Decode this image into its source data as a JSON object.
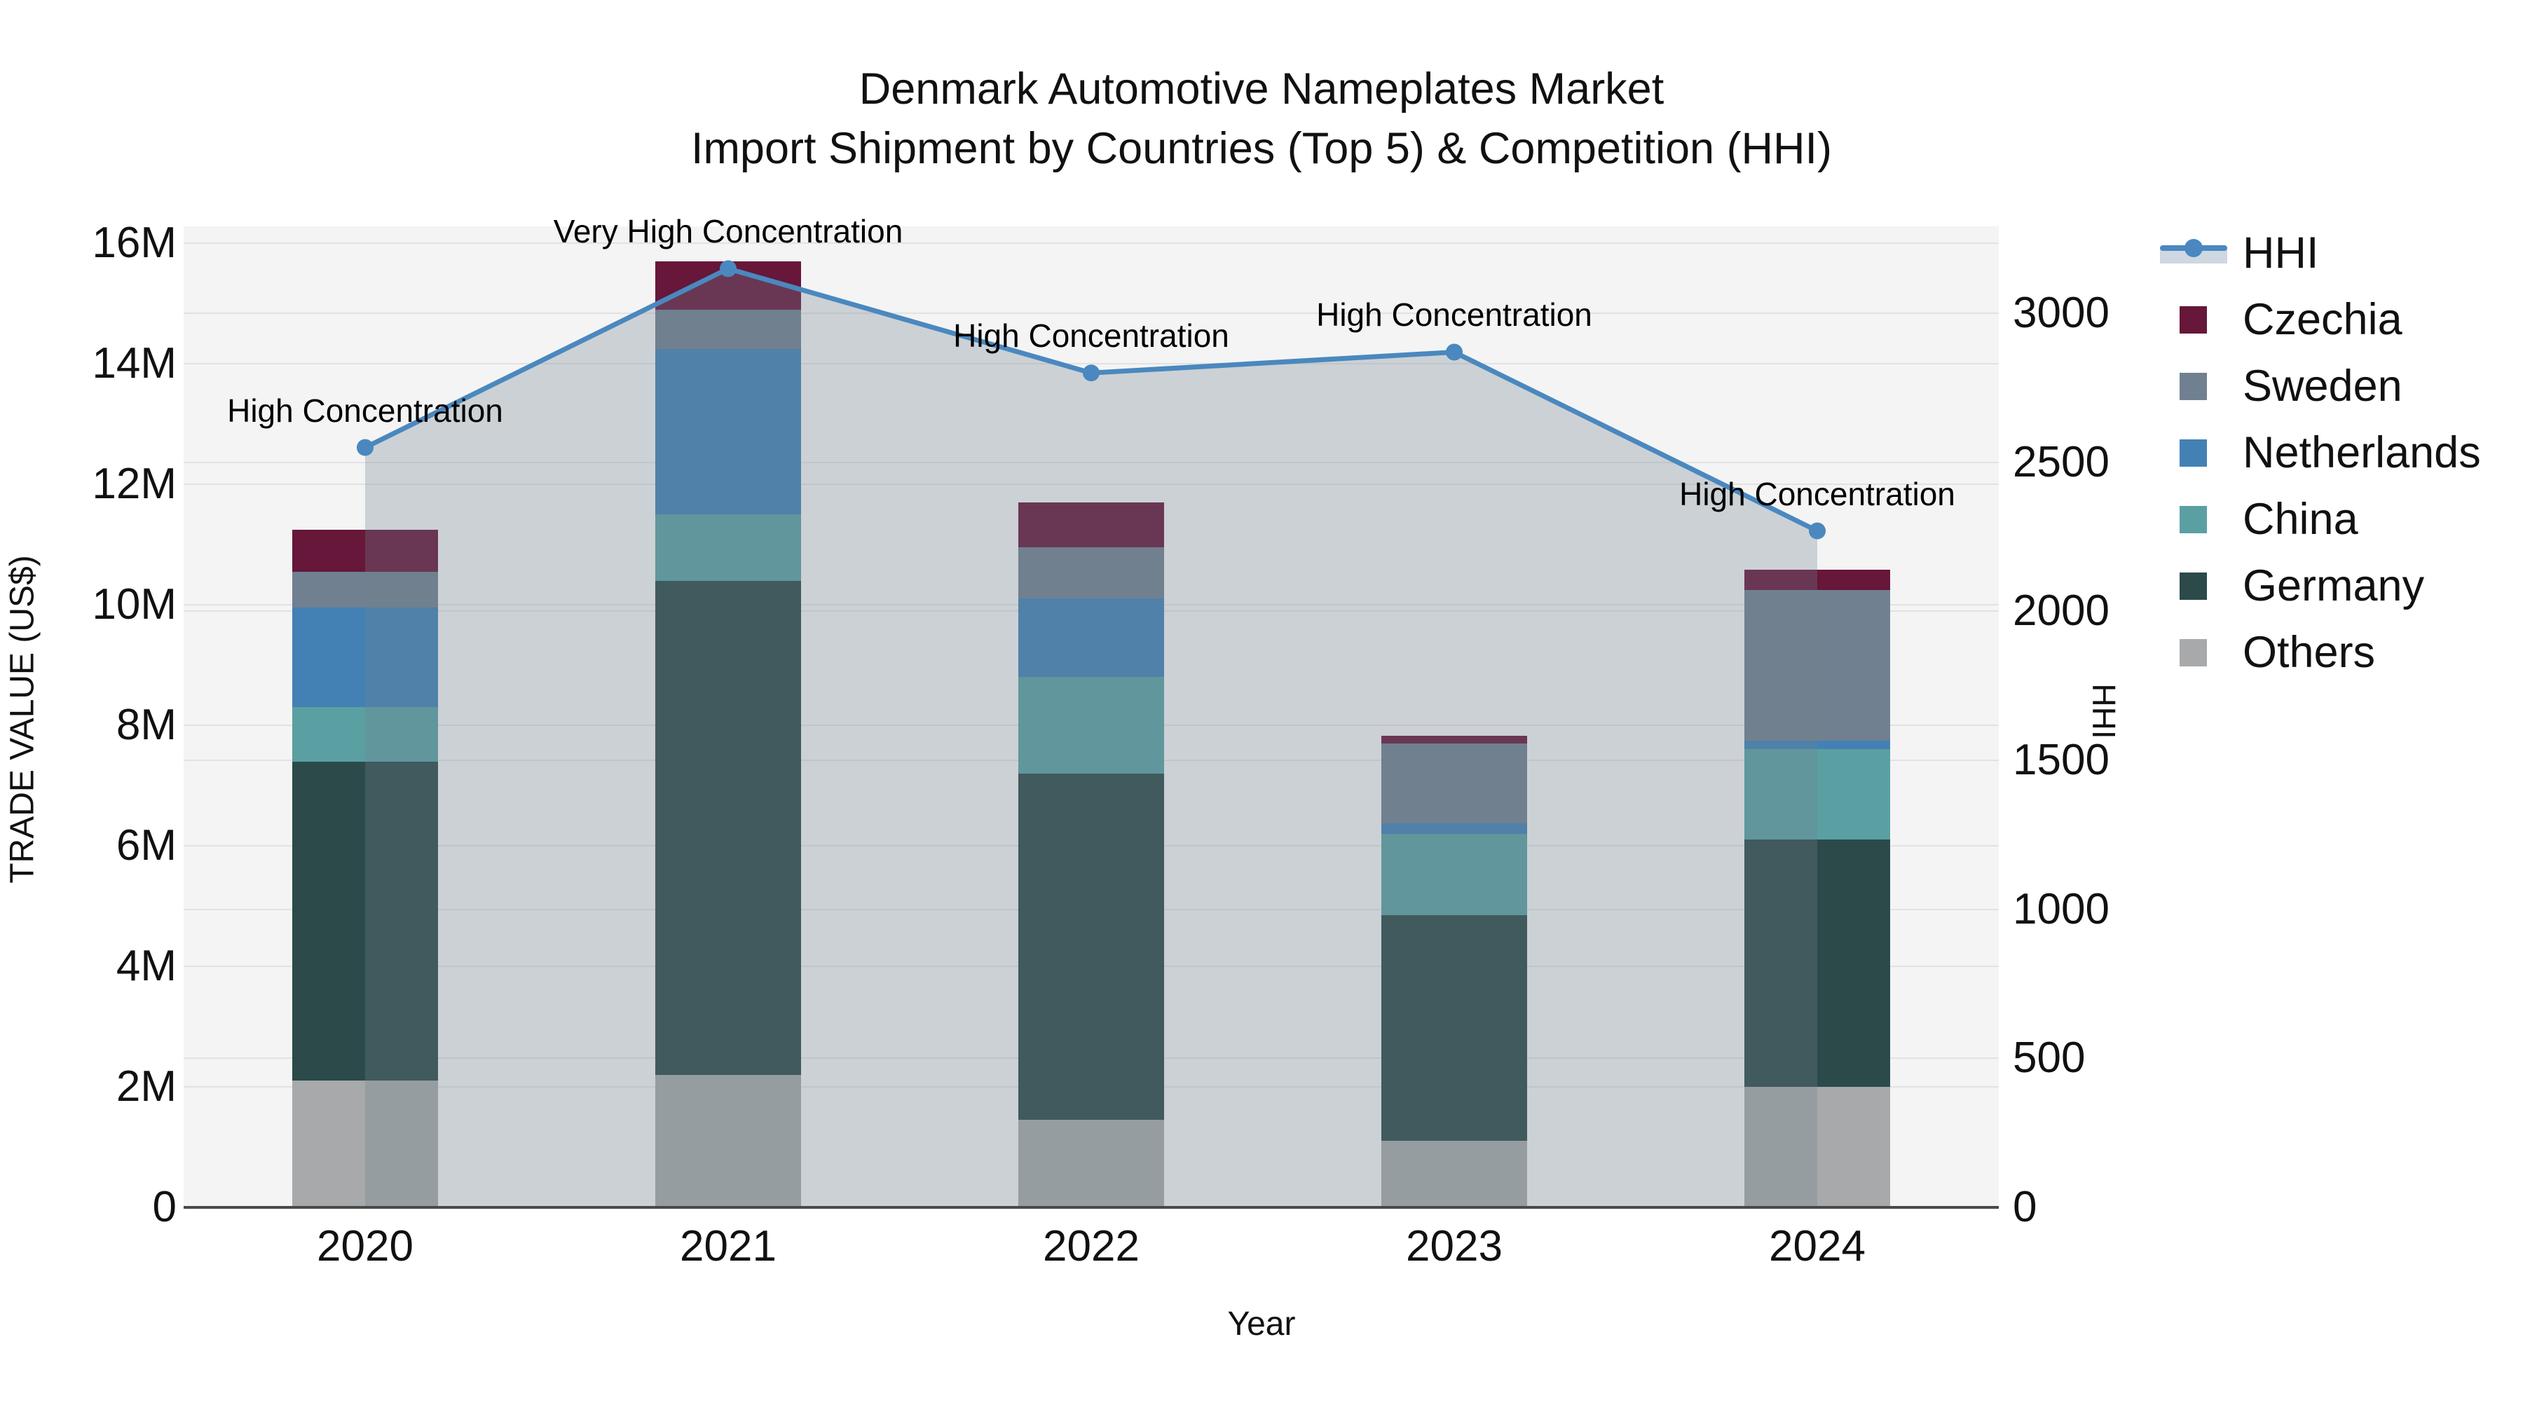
{
  "title": {
    "line1": "Denmark Automotive Nameplates Market",
    "line2": "Import Shipment by Countries (Top 5) & Competition (HHI)"
  },
  "legend": {
    "items": [
      {
        "label": "HHI",
        "type": "line",
        "color": "#4a88bf"
      },
      {
        "label": "Czechia",
        "type": "swatch",
        "color": "#66173a"
      },
      {
        "label": "Sweden",
        "type": "swatch",
        "color": "#708090"
      },
      {
        "label": "Netherlands",
        "type": "swatch",
        "color": "#4381b5"
      },
      {
        "label": "China",
        "type": "swatch",
        "color": "#5aa0a2"
      },
      {
        "label": "Germany",
        "type": "swatch",
        "color": "#2c4a4a"
      },
      {
        "label": "Others",
        "type": "swatch",
        "color": "#a7a9aa"
      }
    ]
  },
  "chart_data": {
    "type": "bar+line",
    "categories": [
      "2020",
      "2021",
      "2022",
      "2023",
      "2024"
    ],
    "bar_value_unit": "million US$",
    "stack_order_bottom_to_top": [
      "Others",
      "Germany",
      "China",
      "Netherlands",
      "Sweden",
      "Czechia"
    ],
    "series": [
      {
        "name": "Others",
        "color": "#a7a9aa",
        "values": [
          2.1,
          2.2,
          1.45,
          1.1,
          2.0
        ]
      },
      {
        "name": "Germany",
        "color": "#2c4a4a",
        "values": [
          5.3,
          8.2,
          5.75,
          3.75,
          4.1
        ]
      },
      {
        "name": "China",
        "color": "#5aa0a2",
        "values": [
          0.9,
          1.1,
          1.6,
          1.35,
          1.5
        ]
      },
      {
        "name": "Netherlands",
        "color": "#4381b5",
        "values": [
          1.65,
          2.75,
          1.3,
          0.17,
          0.15
        ]
      },
      {
        "name": "Sweden",
        "color": "#708090",
        "values": [
          0.6,
          0.65,
          0.85,
          1.33,
          2.5
        ]
      },
      {
        "name": "Czechia",
        "color": "#66173a",
        "values": [
          0.7,
          0.8,
          0.75,
          0.13,
          0.33
        ]
      }
    ],
    "bar_totals_m": [
      11.25,
      15.7,
      11.7,
      7.83,
      10.58
    ],
    "line": {
      "name": "HHI",
      "color": "#4a88bf",
      "area_fill": "rgba(112,128,144,0.30)",
      "values": [
        2550,
        3150,
        2800,
        2870,
        2270
      ]
    },
    "annotations": [
      {
        "year": "2020",
        "text": "High Concentration"
      },
      {
        "year": "2021",
        "text": "Very High Concentration"
      },
      {
        "year": "2022",
        "text": "High Concentration"
      },
      {
        "year": "2023",
        "text": "High Concentration"
      },
      {
        "year": "2024",
        "text": "High Concentration"
      }
    ],
    "left_axis": {
      "title": "TRADE VALUE (US$)",
      "ticks": [
        {
          "label": "0",
          "value": 0
        },
        {
          "label": "2M",
          "value": 2
        },
        {
          "label": "4M",
          "value": 4
        },
        {
          "label": "6M",
          "value": 6
        },
        {
          "label": "8M",
          "value": 8
        },
        {
          "label": "10M",
          "value": 10
        },
        {
          "label": "12M",
          "value": 12
        },
        {
          "label": "14M",
          "value": 14
        },
        {
          "label": "16M",
          "value": 16
        }
      ],
      "range": [
        0,
        16.28
      ]
    },
    "right_axis": {
      "title": "HHI",
      "ticks": [
        {
          "label": "0",
          "value": 0
        },
        {
          "label": "500",
          "value": 500
        },
        {
          "label": "1000",
          "value": 1000
        },
        {
          "label": "1500",
          "value": 1500
        },
        {
          "label": "2000",
          "value": 2000
        },
        {
          "label": "2500",
          "value": 2500
        },
        {
          "label": "3000",
          "value": 3000
        }
      ],
      "range": [
        0,
        3292
      ]
    },
    "x_axis": {
      "title": "Year"
    },
    "layout_hints": {
      "grid": "on",
      "legend_position": "right",
      "plot_bg": "#f4f4f4"
    }
  }
}
